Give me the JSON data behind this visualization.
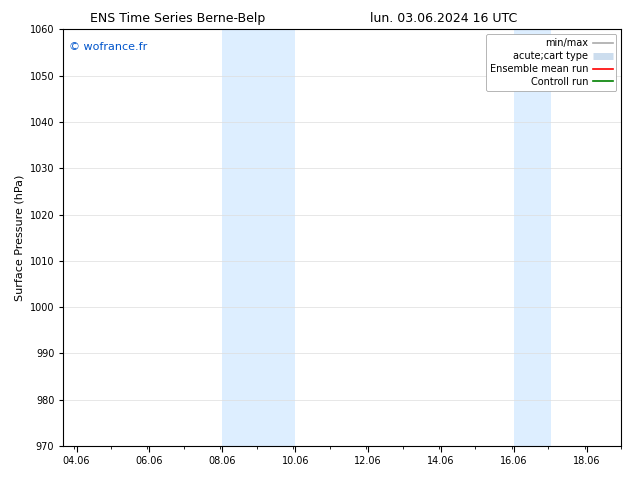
{
  "title_left": "ENS Time Series Berne-Belp",
  "title_right": "lun. 03.06.2024 16 UTC",
  "ylabel": "Surface Pressure (hPa)",
  "ylim": [
    970,
    1060
  ],
  "yticks": [
    970,
    980,
    990,
    1000,
    1010,
    1020,
    1030,
    1040,
    1050,
    1060
  ],
  "xticks": [
    4.06,
    6.06,
    8.06,
    10.06,
    12.06,
    14.06,
    16.06,
    18.06
  ],
  "xtick_labels": [
    "04.06",
    "06.06",
    "08.06",
    "10.06",
    "12.06",
    "14.06",
    "16.06",
    "18.06"
  ],
  "xlim": [
    3.7,
    19.0
  ],
  "shaded_bands": [
    {
      "xstart": 8.06,
      "xend": 10.06
    },
    {
      "xstart": 16.06,
      "xend": 17.06
    }
  ],
  "band_color": "#ddeeff",
  "watermark": "© wofrance.fr",
  "watermark_color": "#0055cc",
  "legend_items": [
    {
      "label": "min/max",
      "color": "#aaaaaa",
      "lw": 1.2,
      "style": "thin"
    },
    {
      "label": "acute;cart type",
      "color": "#ccddee",
      "lw": 5,
      "style": "thick"
    },
    {
      "label": "Ensemble mean run",
      "color": "red",
      "lw": 1.2,
      "style": "thin"
    },
    {
      "label": "Controll run",
      "color": "green",
      "lw": 1.2,
      "style": "thin"
    }
  ],
  "bg_color": "#ffffff",
  "grid_color": "#dddddd",
  "title_fontsize": 9,
  "tick_fontsize": 7,
  "ylabel_fontsize": 8,
  "legend_fontsize": 7,
  "watermark_fontsize": 8
}
